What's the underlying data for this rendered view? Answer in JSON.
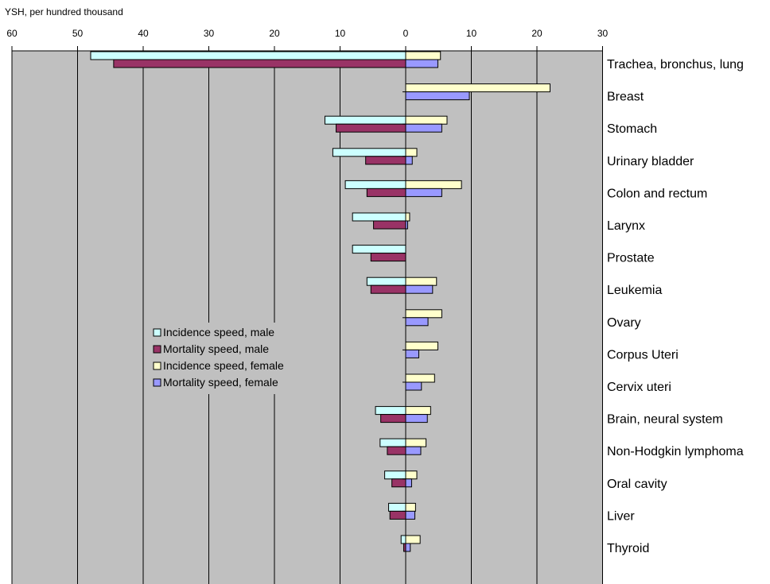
{
  "chart_data": {
    "type": "bar",
    "orientation": "horizontal",
    "ylabel": "YSH, per hundred thousand",
    "xlim": [
      -30,
      60
    ],
    "tick_labels": [
      "60",
      "50",
      "40",
      "30",
      "20",
      "10",
      "0",
      "10",
      "20",
      "30"
    ],
    "grid": true,
    "legend_position": "center-left",
    "categories": [
      "Trachea, bronchus, lung",
      "Breast",
      "Stomach",
      "Urinary bladder",
      "Colon and rectum",
      "Larynx",
      "Prostate",
      "Leukemia",
      "Ovary",
      "Corpus Uteri",
      "Cervix uteri",
      "Brain, neural system",
      "Non-Hodgkin lymphoma",
      "Oral cavity",
      "Liver",
      "Thyroid"
    ],
    "series": [
      {
        "name": "Incidence speed, male",
        "side": "left",
        "color": "#ccffff",
        "values": [
          48,
          0,
          12.3,
          11.1,
          9.2,
          8.1,
          8.1,
          5.9,
          0,
          0,
          0,
          4.6,
          3.9,
          3.2,
          2.6,
          0.7
        ]
      },
      {
        "name": "Mortality speed, male",
        "side": "left",
        "color": "#993366",
        "values": [
          44.5,
          0,
          10.6,
          6.1,
          5.9,
          4.9,
          5.3,
          5.3,
          0,
          0,
          0,
          3.8,
          2.8,
          2.1,
          2.4,
          0.3
        ]
      },
      {
        "name": "Incidence speed, female",
        "side": "right",
        "color": "#ffffcc",
        "values": [
          5.3,
          22,
          6.3,
          1.7,
          8.5,
          0.6,
          0,
          4.7,
          5.5,
          4.9,
          4.4,
          3.8,
          3.1,
          1.7,
          1.5,
          2.2
        ]
      },
      {
        "name": "Mortality speed, female",
        "side": "right",
        "color": "#9999ff",
        "values": [
          4.9,
          9.7,
          5.5,
          1.0,
          5.5,
          0.3,
          0,
          4.1,
          3.4,
          2.0,
          2.4,
          3.3,
          2.3,
          0.9,
          1.4,
          0.7
        ]
      }
    ]
  },
  "colors": {
    "plot_background": "#c0c0c0",
    "gridline": "#000000",
    "bar_outline": "#000000"
  }
}
